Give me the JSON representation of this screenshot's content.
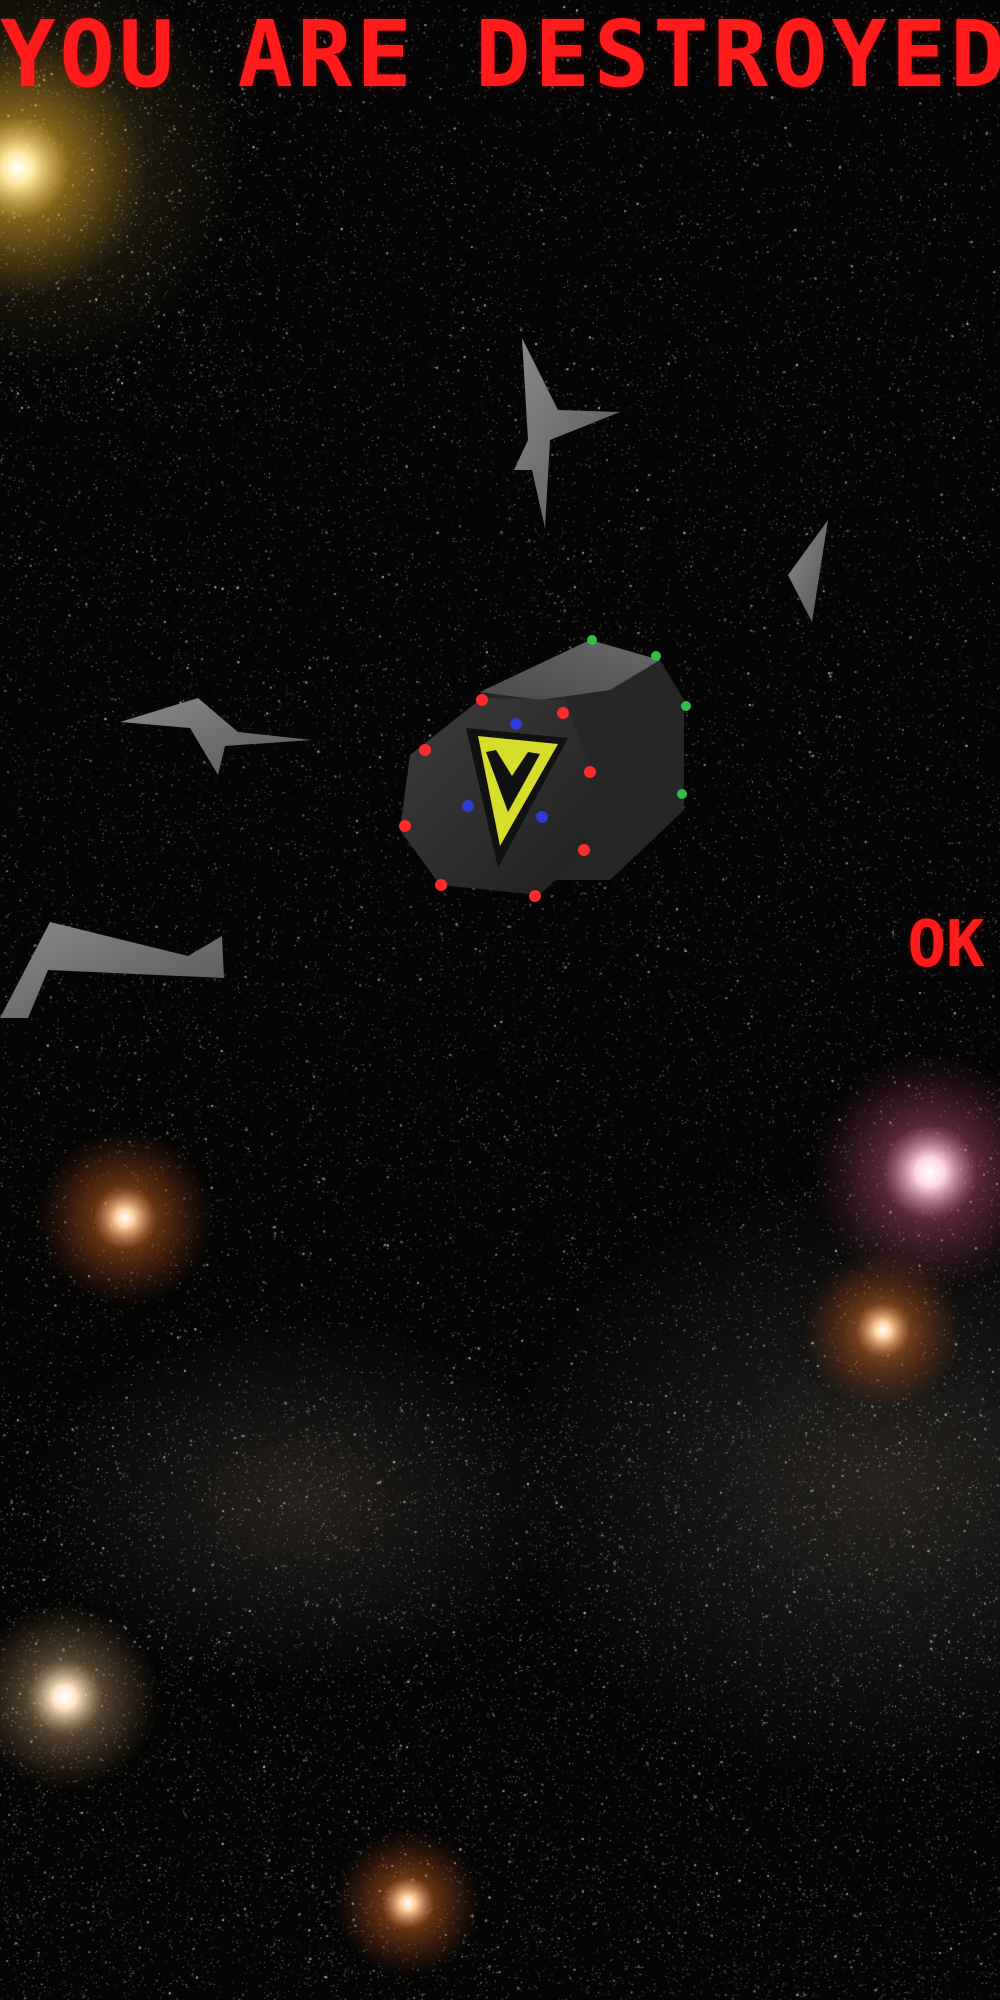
{
  "hud": {
    "title": "YOU ARE DESTROYED",
    "ok_label": "OK"
  },
  "colors": {
    "text_red": "#ff1b1b",
    "ship_body": "#2c2c2c",
    "ship_emblem": "#d6dd2b",
    "debris": "#6b6b6b",
    "light_red": "#ff2a2a",
    "light_blue": "#2f3bd6",
    "light_green": "#2fc04a"
  },
  "scene": {
    "ship_emblem_letter": "V",
    "icons": [
      "ship-icon",
      "debris-icon",
      "star-glow-icon"
    ]
  }
}
